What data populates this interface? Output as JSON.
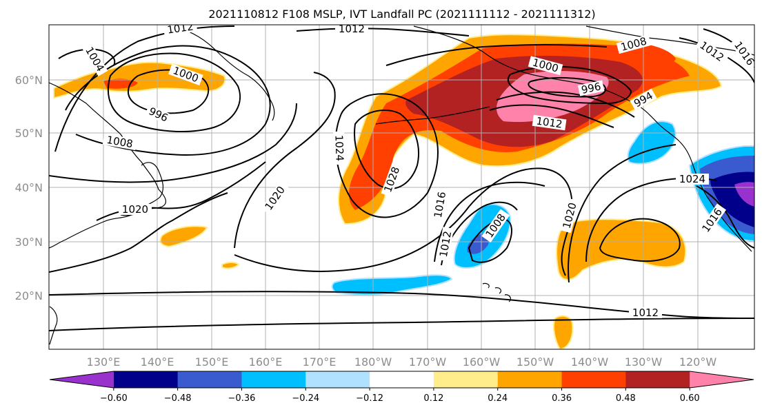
{
  "title": "2021110812 F108 MSLP, IVT Landfall PC (2021111112 - 2021111312)",
  "lon_labels": [
    "130°E",
    "140°E",
    "150°E",
    "160°E",
    "170°E",
    "180°W",
    "170°W",
    "160°W",
    "150°W",
    "140°W",
    "130°W",
    "120°W"
  ],
  "lat_labels": [
    "60°N",
    "50°N",
    "40°N",
    "30°N",
    "20°N"
  ],
  "colorbar": {
    "ticks": [
      "−0.60",
      "−0.48",
      "−0.36",
      "−0.24",
      "−0.12",
      "0.12",
      "0.24",
      "0.36",
      "0.48",
      "0.60"
    ],
    "colors": [
      "#9932cc",
      "#00008b",
      "#3a5bcf",
      "#00bfff",
      "#b0e2ff",
      "#ffffff",
      "#ffec8b",
      "#ffa500",
      "#ff4000",
      "#b22222",
      "#ff82ab"
    ]
  },
  "isobar_labels": [
    "1012",
    "1012",
    "1004",
    "1000",
    "996",
    "1008",
    "1020",
    "1024",
    "1028",
    "1020",
    "1016",
    "1012",
    "1008",
    "1000",
    "996",
    "1012",
    "1008",
    "1012",
    "1016",
    "994",
    "1020",
    "1024",
    "1016",
    "1012"
  ]
}
